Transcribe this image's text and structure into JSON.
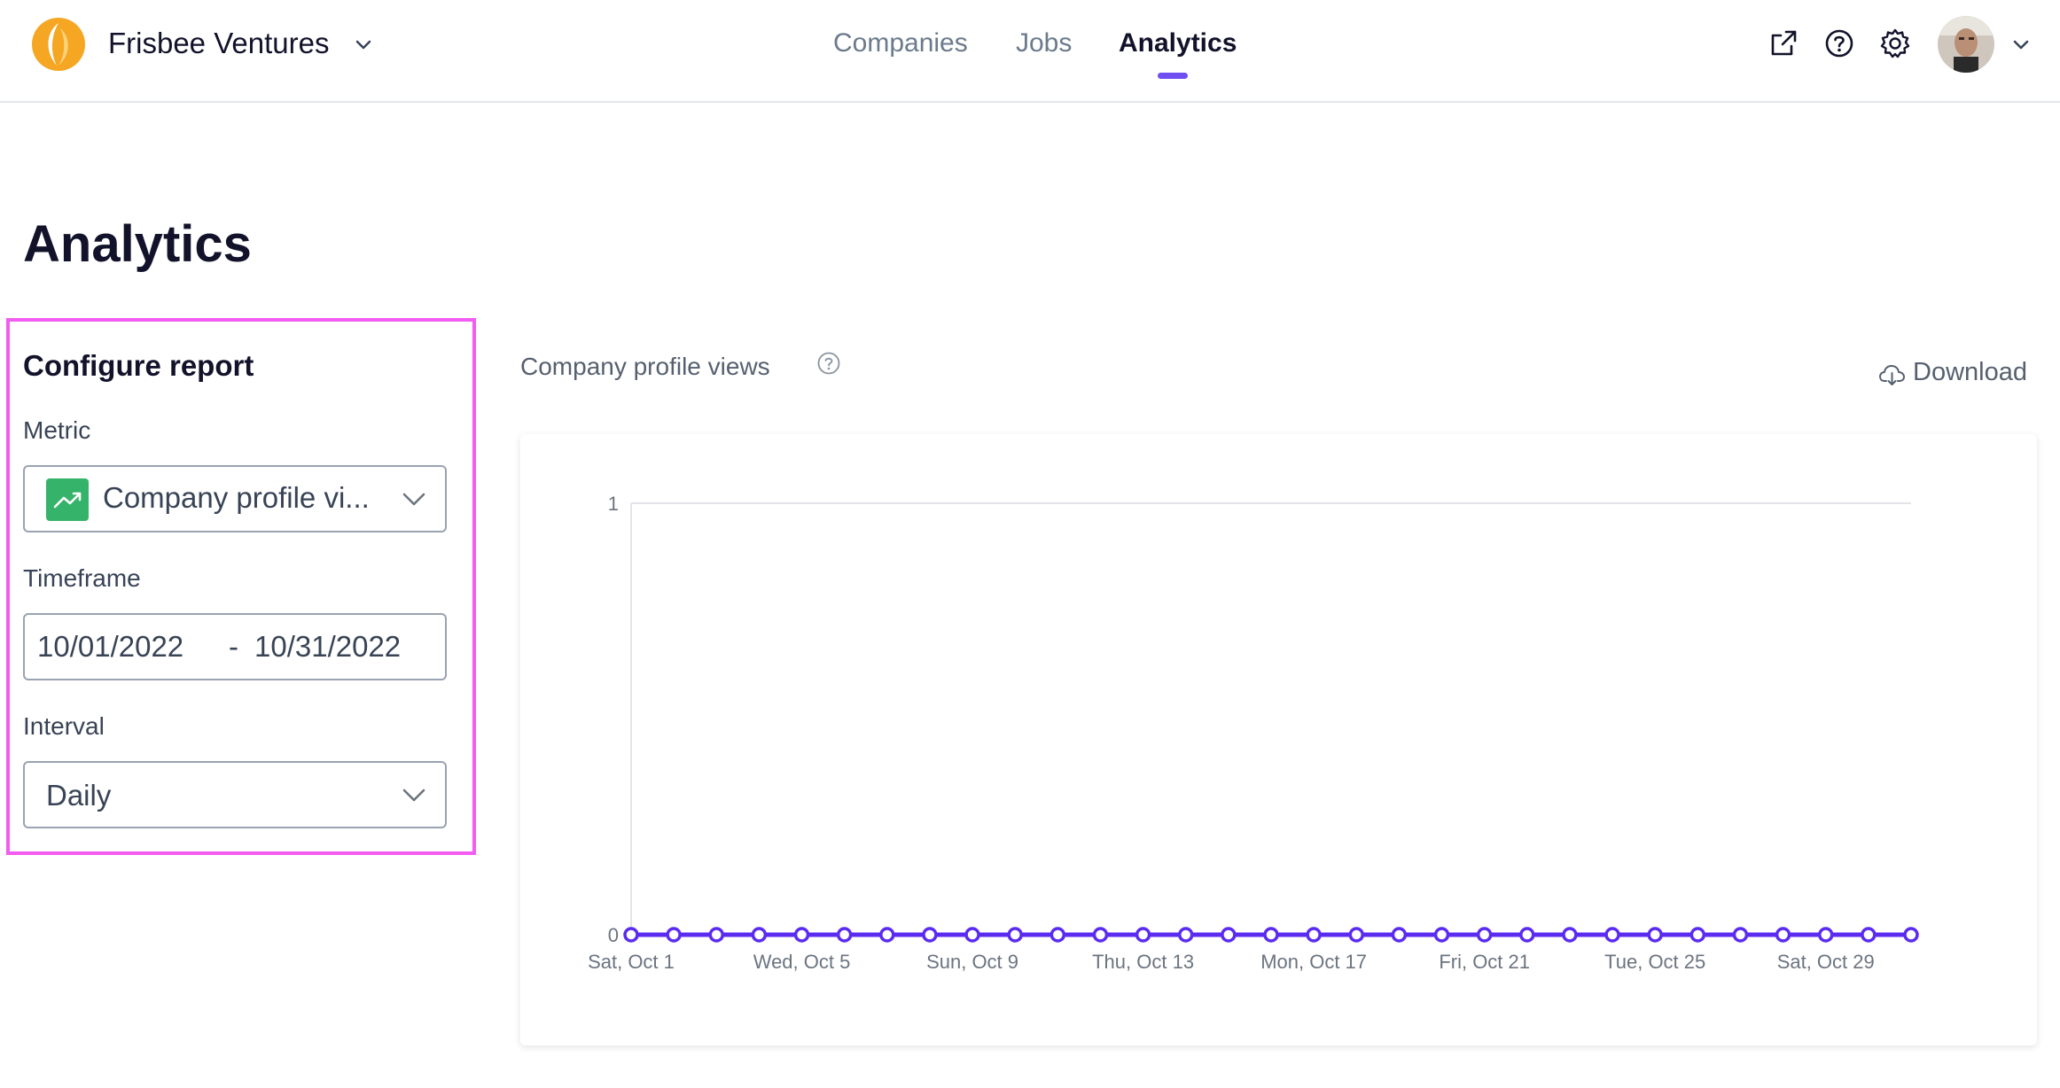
{
  "header": {
    "org_name": "Frisbee Ventures",
    "nav": [
      "Companies",
      "Jobs",
      "Analytics"
    ],
    "active_nav": "Analytics",
    "icons": [
      "external-link-icon",
      "help-icon",
      "settings-icon"
    ]
  },
  "page": {
    "title": "Analytics"
  },
  "config": {
    "title": "Configure report",
    "metric_label": "Metric",
    "metric_value": "Company profile vi...",
    "timeframe_label": "Timeframe",
    "date_start": "10/01/2022",
    "date_separator": "-",
    "date_end": "10/31/2022",
    "interval_label": "Interval",
    "interval_value": "Daily"
  },
  "chart_header": {
    "title": "Company profile views",
    "download_label": "Download"
  },
  "colors": {
    "accent": "#6f4ef2",
    "series": "#5b2bf0",
    "metric_chip": "#35b36a",
    "highlight_border": "#f25cf0"
  },
  "chart_data": {
    "type": "line",
    "x": [
      "Oct 1",
      "Oct 2",
      "Oct 3",
      "Oct 4",
      "Oct 5",
      "Oct 6",
      "Oct 7",
      "Oct 8",
      "Oct 9",
      "Oct 10",
      "Oct 11",
      "Oct 12",
      "Oct 13",
      "Oct 14",
      "Oct 15",
      "Oct 16",
      "Oct 17",
      "Oct 18",
      "Oct 19",
      "Oct 20",
      "Oct 21",
      "Oct 22",
      "Oct 23",
      "Oct 24",
      "Oct 25",
      "Oct 26",
      "Oct 27",
      "Oct 28",
      "Oct 29",
      "Oct 30",
      "Oct 31"
    ],
    "x_tick_labels": [
      "Sat, Oct 1",
      "Wed, Oct 5",
      "Sun, Oct 9",
      "Thu, Oct 13",
      "Mon, Oct 17",
      "Fri, Oct 21",
      "Tue, Oct 25",
      "Sat, Oct 29"
    ],
    "y_tick_labels": [
      "0",
      "1"
    ],
    "ylim": [
      0,
      1
    ],
    "series": [
      {
        "values": [
          0,
          0,
          0,
          0,
          0,
          0,
          0,
          0,
          0,
          0,
          0,
          0,
          0,
          0,
          0,
          0,
          0,
          0,
          0,
          0,
          0,
          0,
          0,
          0,
          0,
          0,
          0,
          0,
          0,
          0,
          0
        ]
      }
    ],
    "markers": "hollow-circle",
    "grid": "horizontal"
  }
}
